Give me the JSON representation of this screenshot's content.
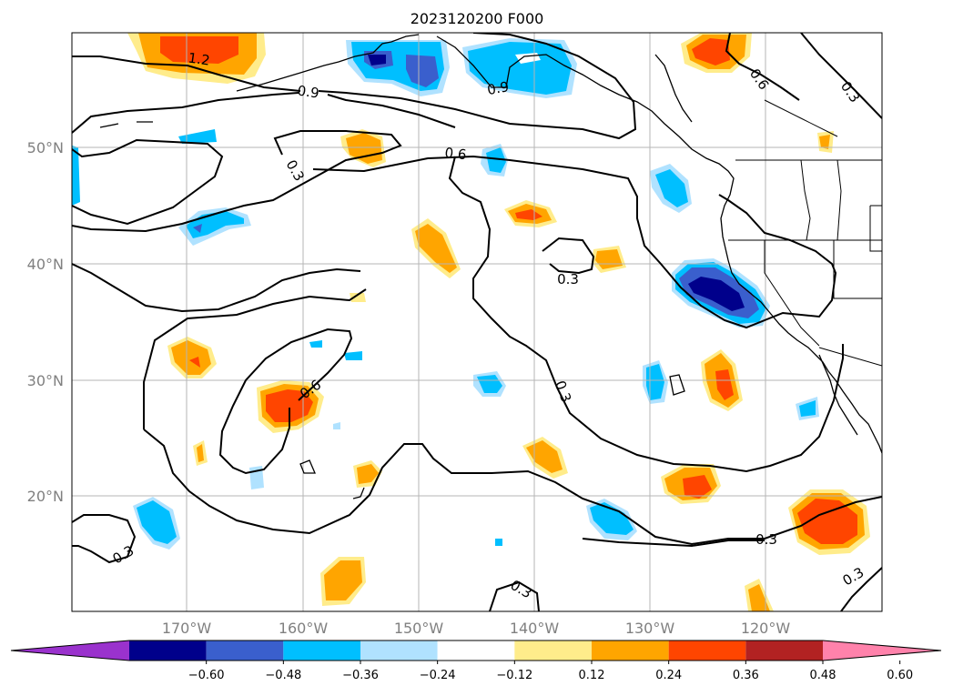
{
  "title": "2023120200 F000",
  "map": {
    "lat_labels": [
      "50°N",
      "40°N",
      "30°N",
      "20°N"
    ],
    "lon_labels": [
      "170°W",
      "160°W",
      "150°W",
      "140°W",
      "130°W",
      "120°W"
    ],
    "contour_labels": [
      "1.2",
      "0.9",
      "0.9",
      "0.6",
      "0.3",
      "0.3",
      "0.6",
      "0.3",
      "0.3",
      "0.3",
      "0.3",
      "0.3",
      "0.3",
      "0.6"
    ]
  },
  "colorbar": {
    "ticks": [
      "−0.60",
      "−0.48",
      "−0.36",
      "−0.24",
      "−0.12",
      "0.12",
      "0.24",
      "0.36",
      "0.48",
      "0.60"
    ],
    "colors": [
      "#9a32cd",
      "#00008b",
      "#3a5fcd",
      "#00bfff",
      "#b0e2ff",
      "#ffffff",
      "#ffec8b",
      "#ffa500",
      "#ff4500",
      "#b22222",
      "#ff82ab"
    ]
  }
}
